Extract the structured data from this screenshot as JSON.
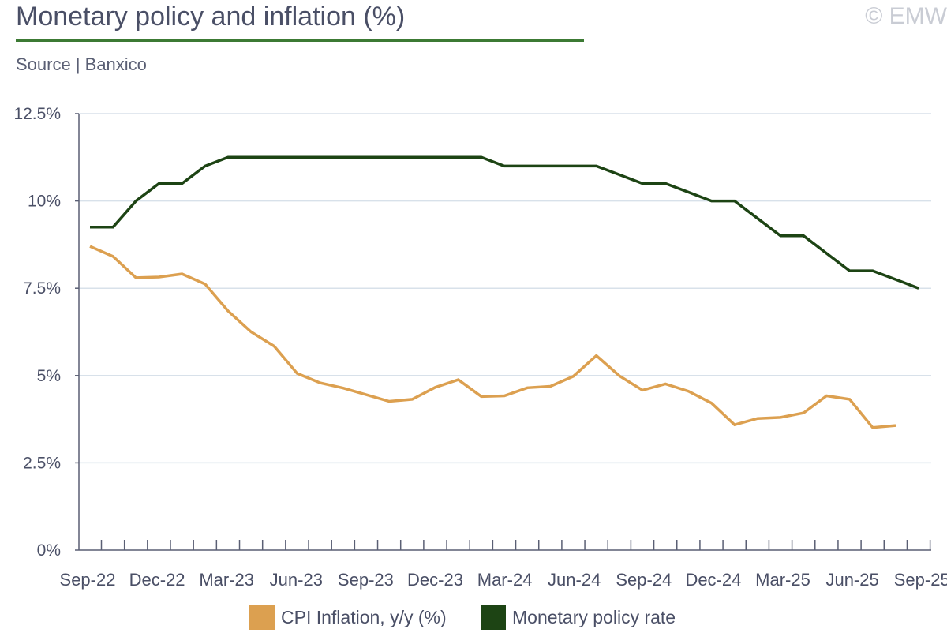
{
  "header": {
    "title": "Monetary policy and inflation (%)",
    "source": "Source | Banxico",
    "copyright": "© EMW"
  },
  "colors": {
    "cpi": "#dca050",
    "policy": "#1d4414",
    "grid": "#d8e1ea",
    "axis": "#5a5f74",
    "title_rule": "#3c7a34"
  },
  "chart_data": {
    "type": "line",
    "title": "Monetary policy and inflation (%)",
    "xlabel": "",
    "ylabel": "",
    "ylim": [
      0,
      12.5
    ],
    "yticks": [
      0,
      2.5,
      5,
      7.5,
      10,
      12.5
    ],
    "ytick_labels": [
      "0%",
      "2.5%",
      "5%",
      "7.5%",
      "10%",
      "12.5%"
    ],
    "x": [
      "Sep-22",
      "Oct-22",
      "Nov-22",
      "Dec-22",
      "Jan-23",
      "Feb-23",
      "Mar-23",
      "Apr-23",
      "May-23",
      "Jun-23",
      "Jul-23",
      "Aug-23",
      "Sep-23",
      "Oct-23",
      "Nov-23",
      "Dec-23",
      "Jan-24",
      "Feb-24",
      "Mar-24",
      "Apr-24",
      "May-24",
      "Jun-24",
      "Jul-24",
      "Aug-24",
      "Sep-24",
      "Oct-24",
      "Nov-24",
      "Dec-24",
      "Jan-25",
      "Feb-25",
      "Mar-25",
      "Apr-25",
      "May-25",
      "Jun-25",
      "Jul-25",
      "Aug-25",
      "Sep-25"
    ],
    "xtick_labels": [
      "Sep-22",
      "Dec-22",
      "Mar-23",
      "Jun-23",
      "Sep-23",
      "Dec-23",
      "Mar-24",
      "Jun-24",
      "Sep-24",
      "Dec-24",
      "Mar-25",
      "Jun-25",
      "Sep-25"
    ],
    "series": [
      {
        "name": "CPI Inflation, y/y (%)",
        "color": "#dca050",
        "values": [
          8.7,
          8.41,
          7.8,
          7.82,
          7.91,
          7.62,
          6.85,
          6.25,
          5.84,
          5.06,
          4.79,
          4.64,
          4.45,
          4.26,
          4.32,
          4.66,
          4.88,
          4.4,
          4.42,
          4.65,
          4.69,
          4.98,
          5.57,
          4.99,
          4.58,
          4.76,
          4.55,
          4.21,
          3.59,
          3.77,
          3.8,
          3.93,
          4.42,
          4.32,
          3.51,
          3.57,
          null
        ]
      },
      {
        "name": "Monetary policy rate",
        "color": "#1d4414",
        "values": [
          9.25,
          9.25,
          10.0,
          10.5,
          10.5,
          11.0,
          11.25,
          11.25,
          11.25,
          11.25,
          11.25,
          11.25,
          11.25,
          11.25,
          11.25,
          11.25,
          11.25,
          11.25,
          11.0,
          11.0,
          11.0,
          11.0,
          11.0,
          10.75,
          10.5,
          10.5,
          10.25,
          10.0,
          10.0,
          9.5,
          9.0,
          9.0,
          8.5,
          8.0,
          8.0,
          7.75,
          7.5
        ]
      }
    ]
  }
}
